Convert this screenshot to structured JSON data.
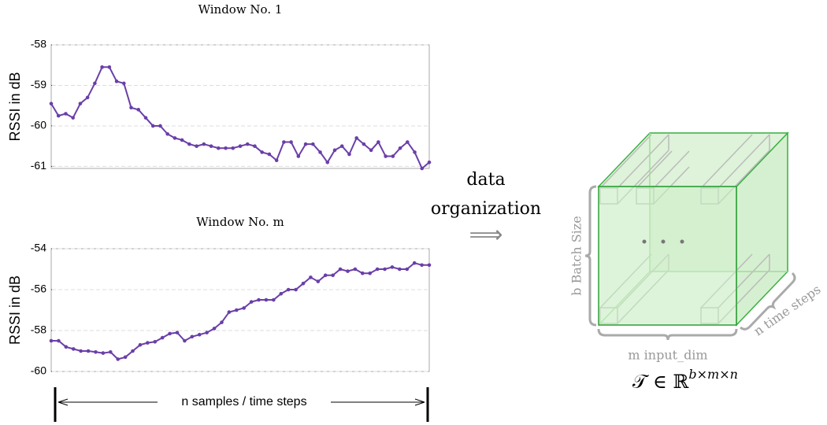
{
  "chart_data": [
    {
      "type": "line",
      "title": "Window No. 1",
      "y_label": "RSSI in dB",
      "series": [
        {
          "color": "#6a3fa8",
          "values": [
            -59.45,
            -59.75,
            -59.7,
            -59.8,
            -59.45,
            -59.3,
            -58.95,
            -58.55,
            -58.55,
            -58.9,
            -58.95,
            -59.55,
            -59.6,
            -59.8,
            -60.0,
            -60.0,
            -60.2,
            -60.3,
            -60.35,
            -60.45,
            -60.5,
            -60.45,
            -60.5,
            -60.55,
            -60.55,
            -60.55,
            -60.5,
            -60.45,
            -60.5,
            -60.65,
            -60.7,
            -60.85,
            -60.4,
            -60.4,
            -60.75,
            -60.45,
            -60.45,
            -60.65,
            -60.9,
            -60.6,
            -60.5,
            -60.7,
            -60.3,
            -60.45,
            -60.6,
            -60.4,
            -60.75,
            -60.75,
            -60.55,
            -60.4,
            -60.65,
            -61.05,
            -60.9
          ]
        }
      ],
      "ylim": [
        -61.05,
        -58
      ],
      "yticks": [
        -58,
        -59,
        -60,
        -61
      ],
      "grid": true
    },
    {
      "type": "line",
      "title": "Window No. m",
      "y_label": "RSSI in dB",
      "series": [
        {
          "color": "#6a3fa8",
          "values": [
            -58.5,
            -58.5,
            -58.8,
            -58.9,
            -59.0,
            -59.0,
            -59.05,
            -59.1,
            -59.05,
            -59.4,
            -59.3,
            -59.0,
            -58.7,
            -58.6,
            -58.55,
            -58.35,
            -58.15,
            -58.1,
            -58.5,
            -58.3,
            -58.2,
            -58.1,
            -57.9,
            -57.6,
            -57.1,
            -57.0,
            -56.9,
            -56.6,
            -56.5,
            -56.5,
            -56.5,
            -56.2,
            -56.0,
            -56.0,
            -55.7,
            -55.4,
            -55.6,
            -55.3,
            -55.3,
            -55.0,
            -55.1,
            -55.0,
            -55.2,
            -55.2,
            -55.0,
            -55.0,
            -54.9,
            -55.0,
            -55.0,
            -54.7,
            -54.8,
            -54.8
          ]
        }
      ],
      "ylim": [
        -60,
        -54
      ],
      "yticks": [
        -54,
        -56,
        -58,
        -60
      ],
      "grid": true
    }
  ],
  "annotation": "n samples / time steps",
  "diagram": {
    "arrow_label_1": "data",
    "arrow_label_2": "organization",
    "arrow": "⟹",
    "batch_label": "b Batch Size",
    "input_label": "m input_dim",
    "time_label": "n time steps",
    "formula_base": "𝒯 ∈ ℝ",
    "formula_exponent": "b×m×n"
  }
}
